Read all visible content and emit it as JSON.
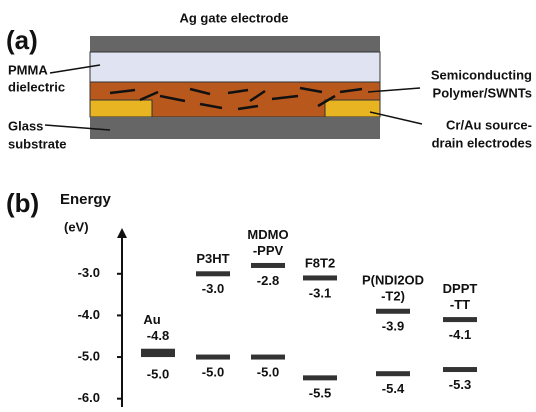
{
  "panel_a": {
    "label": "(a)",
    "gate": "Ag gate electrode",
    "dielectric": [
      "PMMA",
      "dielectric"
    ],
    "substrate": [
      "Glass",
      "substrate"
    ],
    "semiconductor": [
      "Semiconducting",
      "Polymer/SWNTs"
    ],
    "electrodes": [
      "Cr/Au source-",
      "drain electrodes"
    ]
  },
  "panel_b": {
    "label": "(b)",
    "axis_title": "Energy",
    "axis_unit": "(eV)",
    "ylim": [
      -6.2,
      -1.9
    ],
    "yticks": [
      {
        "value": -3,
        "label": "-3.0"
      },
      {
        "value": -4,
        "label": "-4.0"
      },
      {
        "value": -5,
        "label": "-5.0"
      },
      {
        "value": -6,
        "label": "-6.0"
      }
    ],
    "materials": [
      {
        "name": [
          "Au"
        ],
        "style": "band",
        "levels": [
          -4.8,
          -5
        ],
        "value_labels": [
          "-4.8",
          "-5.0"
        ]
      },
      {
        "name": [
          "P3HT"
        ],
        "style": "lines",
        "levels": [
          -3,
          -5
        ],
        "value_labels": [
          "-3.0",
          "-5.0"
        ]
      },
      {
        "name": [
          "MDMO",
          "-PPV"
        ],
        "style": "lines",
        "levels": [
          -2.8,
          -5
        ],
        "value_labels": [
          "-2.8",
          "-5.0"
        ]
      },
      {
        "name": [
          "F8T2"
        ],
        "style": "lines",
        "levels": [
          -3.1,
          -5.5
        ],
        "value_labels": [
          "-3.1",
          "-5.5"
        ]
      },
      {
        "name": [
          "P(NDI2OD",
          "-T2)"
        ],
        "style": "lines",
        "levels": [
          -3.9,
          -5.4
        ],
        "value_labels": [
          "-3.9",
          "-5.4"
        ]
      },
      {
        "name": [
          "DPPT",
          "-TT"
        ],
        "style": "lines",
        "levels": [
          -4.1,
          -5.3
        ],
        "value_labels": [
          "-4.1",
          "-5.3"
        ]
      }
    ]
  }
}
